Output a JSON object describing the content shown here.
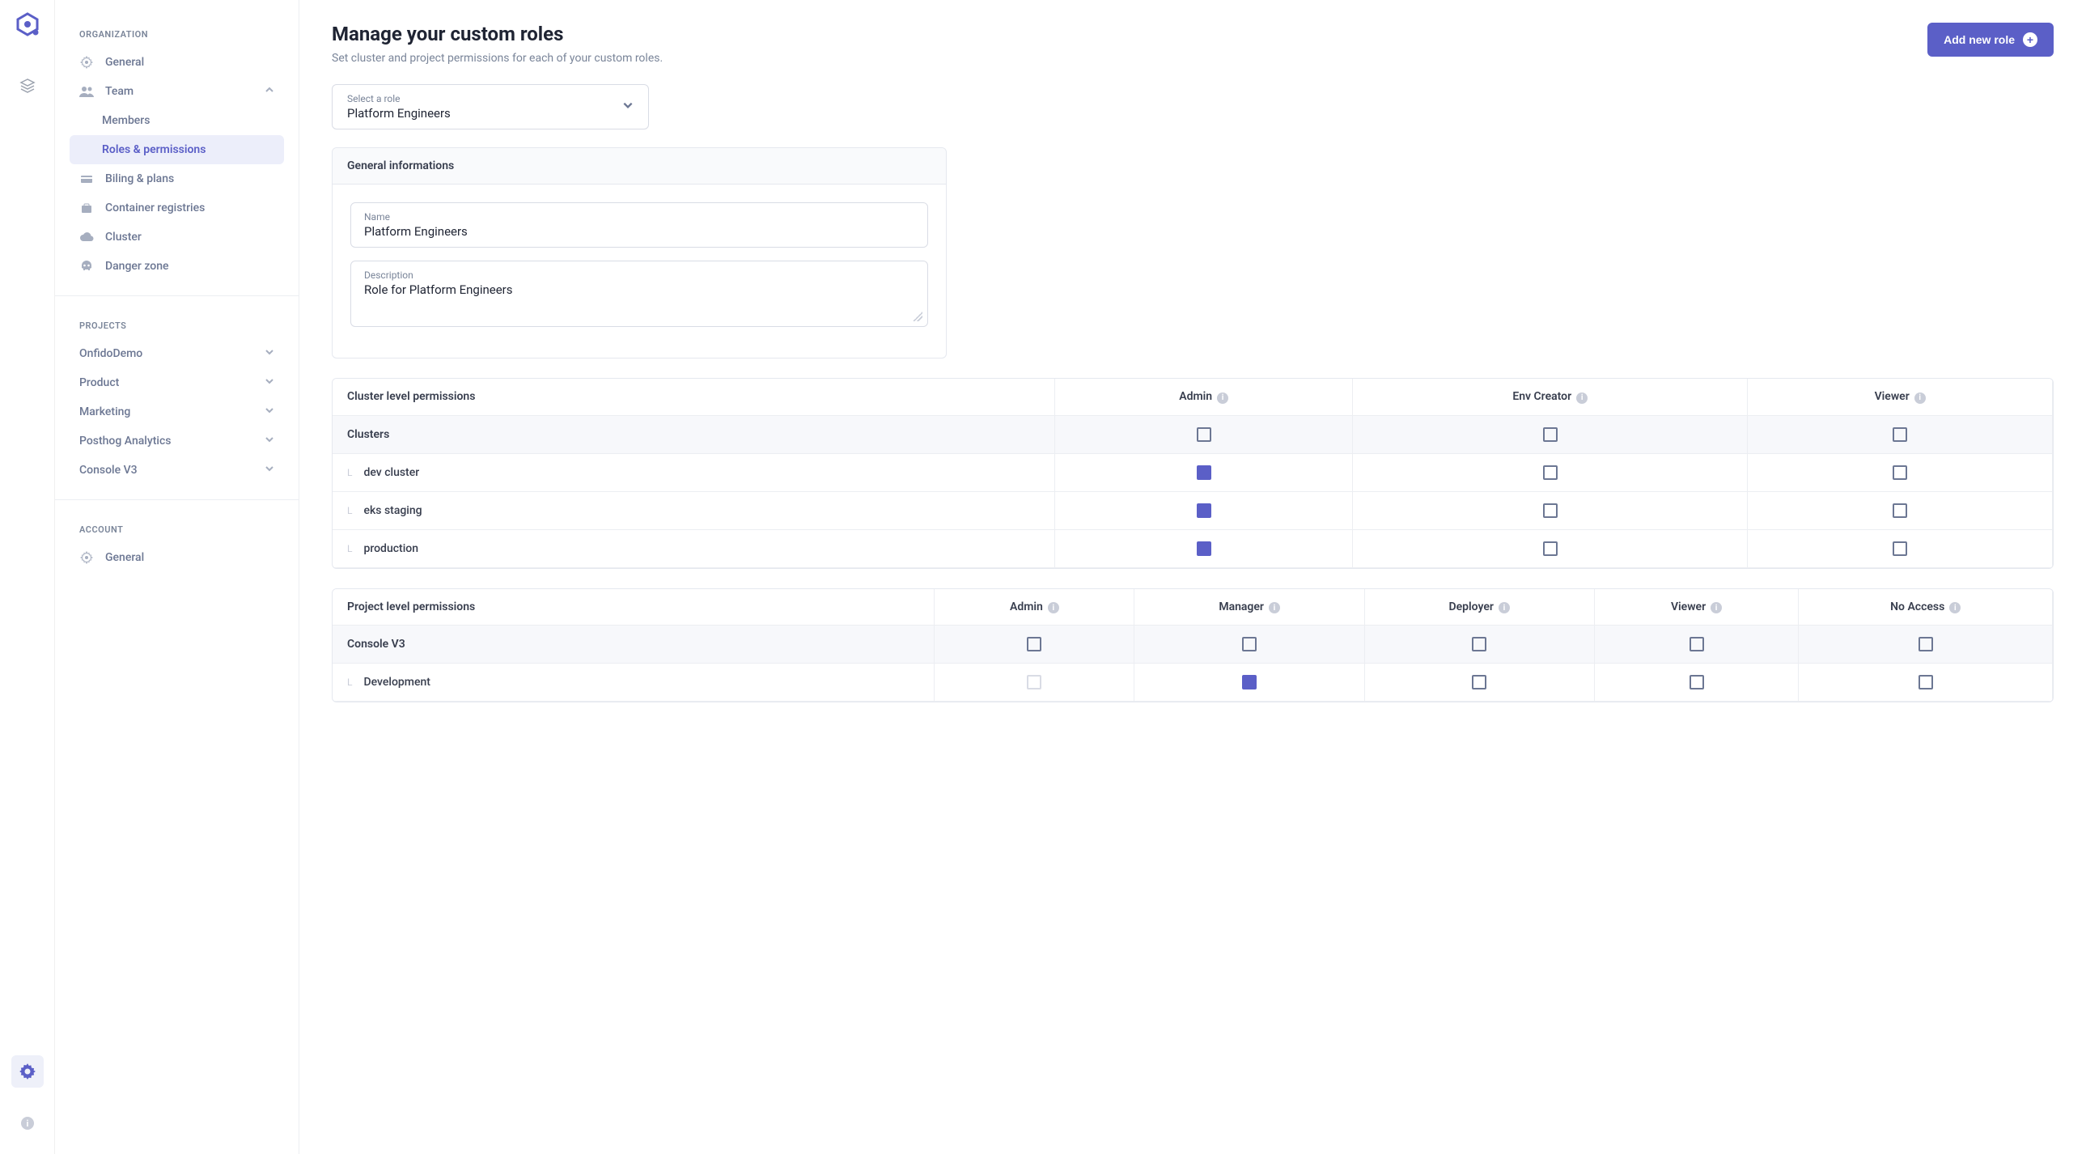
{
  "colors": {
    "primary": "#5b5fc7",
    "text": "#383838",
    "muted": "#7a8599",
    "border": "#e5e8ef",
    "sidebar_active_bg": "#eceefa"
  },
  "header": {
    "title": "Manage your custom roles",
    "subtitle": "Set cluster and project permissions for each of your custom roles.",
    "add_button_label": "Add new role"
  },
  "role_select": {
    "label": "Select a role",
    "value": "Platform Engineers"
  },
  "general_info": {
    "section_title": "General informations",
    "name_label": "Name",
    "name_value": "Platform Engineers",
    "description_label": "Description",
    "description_value": "Role for Platform Engineers"
  },
  "sidebar": {
    "org_label": "ORGANIZATION",
    "projects_label": "PROJECTS",
    "account_label": "ACCOUNT",
    "org_items": [
      {
        "label": "General",
        "icon": "gear"
      },
      {
        "label": "Team",
        "icon": "people",
        "expanded": true,
        "children": [
          {
            "label": "Members",
            "active": false
          },
          {
            "label": "Roles & permissions",
            "active": true
          }
        ]
      },
      {
        "label": "Biling & plans",
        "icon": "card"
      },
      {
        "label": "Container registries",
        "icon": "briefcase"
      },
      {
        "label": "Cluster",
        "icon": "cloud"
      },
      {
        "label": "Danger zone",
        "icon": "skull"
      }
    ],
    "projects": [
      {
        "label": "OnfidoDemo"
      },
      {
        "label": "Product"
      },
      {
        "label": "Marketing"
      },
      {
        "label": "Posthog Analytics"
      },
      {
        "label": "Console V3"
      }
    ],
    "account_items": [
      {
        "label": "General",
        "icon": "gear"
      }
    ]
  },
  "cluster_table": {
    "title": "Cluster level permissions",
    "columns": [
      "Admin",
      "Env Creator",
      "Viewer"
    ],
    "group_label": "Clusters",
    "group_checks": [
      false,
      false,
      false
    ],
    "rows": [
      {
        "label": "dev cluster",
        "checks": [
          true,
          false,
          false
        ]
      },
      {
        "label": "eks staging",
        "checks": [
          true,
          false,
          false
        ]
      },
      {
        "label": "production",
        "checks": [
          true,
          false,
          false
        ]
      }
    ]
  },
  "project_table": {
    "title": "Project level permissions",
    "columns": [
      "Admin",
      "Manager",
      "Deployer",
      "Viewer",
      "No Access"
    ],
    "group_label": "Console V3",
    "group_checks": [
      false,
      false,
      false,
      false,
      false
    ],
    "rows": [
      {
        "label": "Development",
        "checks": [
          false,
          true,
          false,
          false,
          false
        ],
        "disabled_first": true
      }
    ]
  }
}
